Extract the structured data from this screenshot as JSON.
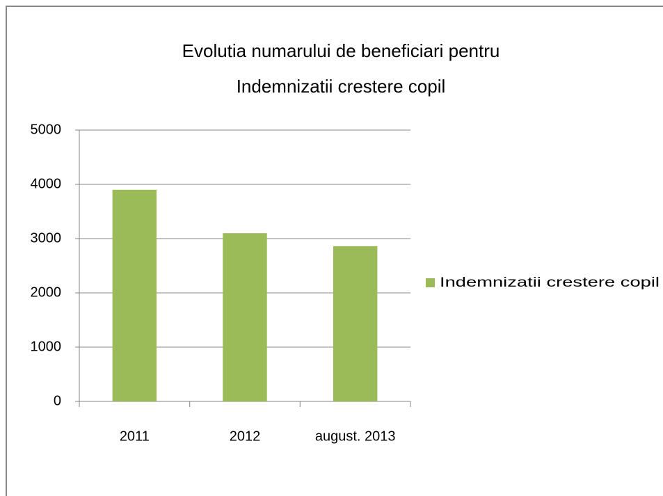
{
  "chart_data": {
    "type": "bar",
    "title": [
      "Evolutia numarului de beneficiari  pentru",
      "Indemnizatii crestere copil"
    ],
    "categories": [
      "2011",
      "2012",
      "august. 2013"
    ],
    "series": [
      {
        "name": "Indemnizatii crestere copil",
        "color": "#9bbb59",
        "values": [
          3900,
          3100,
          2860
        ]
      }
    ],
    "ylim": [
      0,
      5000
    ],
    "yticks": [
      0,
      1000,
      2000,
      3000,
      4000,
      5000
    ],
    "grid": true,
    "legend": "right"
  }
}
